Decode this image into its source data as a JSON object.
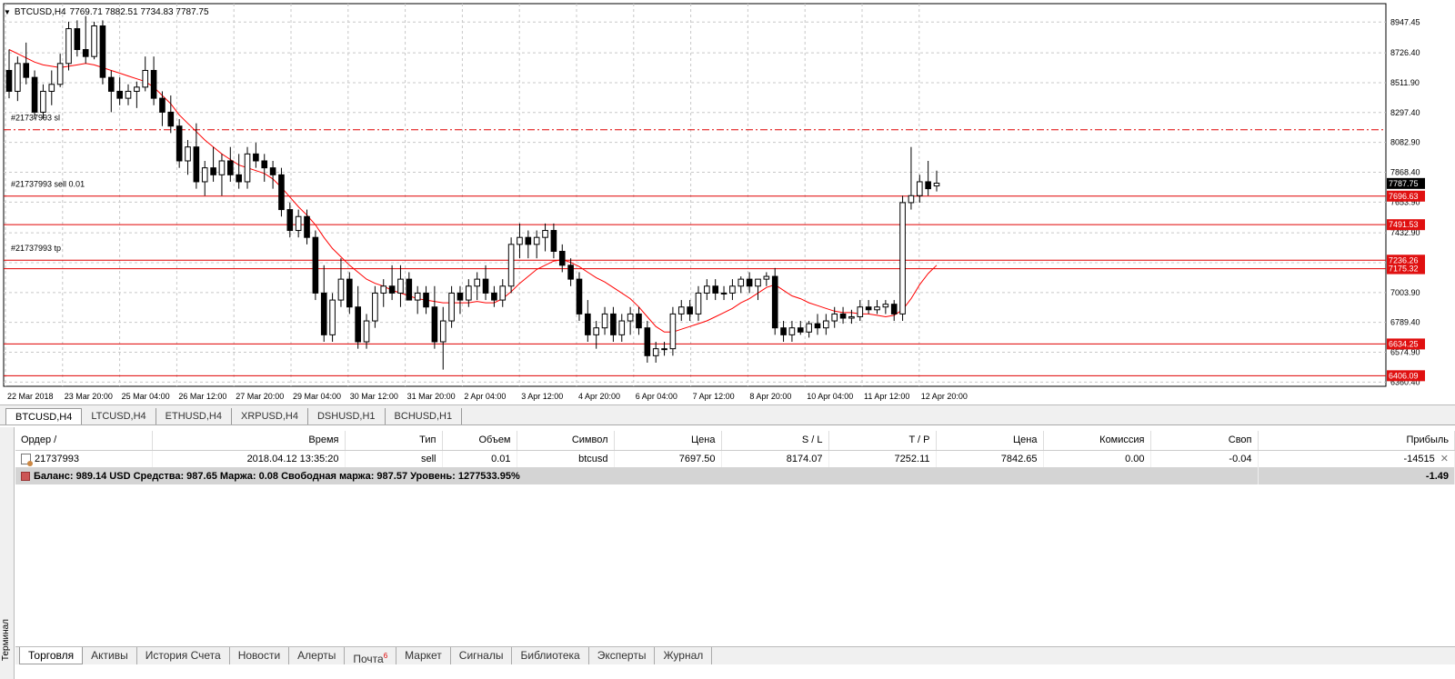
{
  "header": {
    "symbol": "BTCUSD,H4",
    "ohlc": "7769.71 7882.51 7734.83 7787.75"
  },
  "price_axis": {
    "labels": [
      "8947.45",
      "8726.40",
      "8511.90",
      "8297.40",
      "8082.90",
      "7868.40",
      "7653.90",
      "7432.90",
      "7218.40",
      "7003.90",
      "6789.40",
      "6574.90",
      "6360.40"
    ],
    "current_price": "7787.75",
    "levels": [
      {
        "price": "7696.63",
        "y_value": 7696.63
      },
      {
        "price": "7491.53",
        "y_value": 7491.53
      },
      {
        "price": "7236.26",
        "y_value": 7236.26
      },
      {
        "price": "7175.32",
        "y_value": 7175.32
      },
      {
        "price": "6634.25",
        "y_value": 6634.25
      },
      {
        "price": "6406.09",
        "y_value": 6406.09
      }
    ]
  },
  "order_labels": {
    "sl": "#21737993 sl",
    "sell": "#21737993 sell 0.01",
    "tp": "#21737993 tp"
  },
  "time_axis": [
    "22 Mar 2018",
    "23 Mar 20:00",
    "25 Mar 04:00",
    "26 Mar 12:00",
    "27 Mar 20:00",
    "29 Mar 04:00",
    "30 Mar 12:00",
    "31 Mar 20:00",
    "2 Apr 04:00",
    "3 Apr 12:00",
    "4 Apr 20:00",
    "6 Apr 04:00",
    "7 Apr 12:00",
    "8 Apr 20:00",
    "10 Apr 04:00",
    "11 Apr 12:00",
    "12 Apr 20:00"
  ],
  "chart_tabs": [
    "BTCUSD,H4",
    "LTCUSD,H4",
    "ETHUSD,H4",
    "XRPUSD,H4",
    "DSHUSD,H1",
    "BCHUSD,H1"
  ],
  "terminal": {
    "side_label": "Терминал",
    "columns": [
      "Ордер /",
      "Время",
      "Тип",
      "Объем",
      "Символ",
      "Цена",
      "S / L",
      "T / P",
      "Цена",
      "Комиссия",
      "Своп",
      "Прибыль"
    ],
    "order_row": {
      "order": "21737993",
      "time": "2018.04.12 13:35:20",
      "type": "sell",
      "volume": "0.01",
      "symbol": "btcusd",
      "open_price": "7697.50",
      "sl": "8174.07",
      "tp": "7252.11",
      "price": "7842.65",
      "commission": "0.00",
      "swap": "-0.04",
      "profit": "-14515"
    },
    "summary": {
      "text": "Баланс: 989.14 USD  Средства: 987.65  Маржа: 0.08  Свободная маржа: 987.57  Уровень: 1277533.95%",
      "profit": "-1.49"
    },
    "tabs": [
      "Торговля",
      "Активы",
      "История Счета",
      "Новости",
      "Алерты",
      "Почта",
      "Маркет",
      "Сигналы",
      "Библиотека",
      "Эксперты",
      "Журнал"
    ],
    "mail_badge": "6"
  },
  "chart_data": {
    "type": "candlestick",
    "ylim": [
      6330,
      9080
    ],
    "sl_value": 8174.07,
    "ma_color": "#ff0000",
    "level_color": "#e00000",
    "candles": [
      [
        8600,
        8750,
        8400,
        8450
      ],
      [
        8450,
        8700,
        8380,
        8650
      ],
      [
        8650,
        8800,
        8500,
        8550
      ],
      [
        8550,
        8600,
        8250,
        8300
      ],
      [
        8300,
        8500,
        8250,
        8450
      ],
      [
        8450,
        8600,
        8350,
        8500
      ],
      [
        8500,
        8720,
        8480,
        8650
      ],
      [
        8650,
        8950,
        8600,
        8900
      ],
      [
        8900,
        8960,
        8700,
        8750
      ],
      [
        8750,
        8990,
        8650,
        8700
      ],
      [
        8700,
        8950,
        8680,
        8920
      ],
      [
        8920,
        8960,
        8500,
        8550
      ],
      [
        8550,
        8600,
        8300,
        8450
      ],
      [
        8450,
        8550,
        8350,
        8400
      ],
      [
        8400,
        8500,
        8350,
        8450
      ],
      [
        8450,
        8520,
        8330,
        8480
      ],
      [
        8480,
        8700,
        8450,
        8600
      ],
      [
        8600,
        8700,
        8350,
        8400
      ],
      [
        8400,
        8450,
        8200,
        8300
      ],
      [
        8300,
        8420,
        8150,
        8200
      ],
      [
        8200,
        8250,
        7900,
        7950
      ],
      [
        7950,
        8100,
        7850,
        8050
      ],
      [
        8050,
        8220,
        7750,
        7800
      ],
      [
        7800,
        7950,
        7700,
        7900
      ],
      [
        7900,
        8050,
        7800,
        7850
      ],
      [
        7850,
        8000,
        7700,
        7950
      ],
      [
        7950,
        8050,
        7800,
        7850
      ],
      [
        7850,
        8000,
        7750,
        7800
      ],
      [
        7800,
        8050,
        7750,
        8000
      ],
      [
        8000,
        8080,
        7900,
        7950
      ],
      [
        7950,
        8000,
        7800,
        7900
      ],
      [
        7900,
        7950,
        7750,
        7850
      ],
      [
        7850,
        7900,
        7550,
        7600
      ],
      [
        7600,
        7650,
        7400,
        7450
      ],
      [
        7450,
        7600,
        7400,
        7550
      ],
      [
        7550,
        7600,
        7350,
        7400
      ],
      [
        7400,
        7450,
        6950,
        7000
      ],
      [
        7000,
        7200,
        6650,
        6700
      ],
      [
        6700,
        7000,
        6650,
        6950
      ],
      [
        6950,
        7250,
        6900,
        7100
      ],
      [
        7100,
        7150,
        6850,
        6900
      ],
      [
        6900,
        7050,
        6600,
        6650
      ],
      [
        6650,
        6850,
        6600,
        6800
      ],
      [
        6800,
        7050,
        6750,
        7000
      ],
      [
        7000,
        7100,
        6900,
        7050
      ],
      [
        7050,
        7200,
        6950,
        7000
      ],
      [
        7000,
        7200,
        6900,
        7100
      ],
      [
        7100,
        7150,
        6950,
        6950
      ],
      [
        6950,
        7050,
        6850,
        7000
      ],
      [
        7000,
        7050,
        6850,
        6900
      ],
      [
        6900,
        7050,
        6600,
        6650
      ],
      [
        6650,
        6900,
        6450,
        6800
      ],
      [
        6800,
        7050,
        6750,
        7000
      ],
      [
        7000,
        7050,
        6850,
        6950
      ],
      [
        6950,
        7100,
        6900,
        7050
      ],
      [
        7050,
        7150,
        6950,
        7100
      ],
      [
        7100,
        7200,
        6950,
        7000
      ],
      [
        7000,
        7050,
        6900,
        6950
      ],
      [
        6950,
        7100,
        6900,
        7050
      ],
      [
        7050,
        7400,
        7000,
        7350
      ],
      [
        7350,
        7500,
        7250,
        7400
      ],
      [
        7400,
        7450,
        7250,
        7350
      ],
      [
        7350,
        7450,
        7250,
        7400
      ],
      [
        7400,
        7500,
        7300,
        7450
      ],
      [
        7450,
        7500,
        7250,
        7300
      ],
      [
        7300,
        7350,
        7150,
        7200
      ],
      [
        7200,
        7250,
        7050,
        7100
      ],
      [
        7100,
        7150,
        6800,
        6850
      ],
      [
        6850,
        6950,
        6650,
        6700
      ],
      [
        6700,
        6800,
        6600,
        6750
      ],
      [
        6750,
        6900,
        6700,
        6850
      ],
      [
        6850,
        6900,
        6650,
        6700
      ],
      [
        6700,
        6850,
        6650,
        6800
      ],
      [
        6800,
        6900,
        6700,
        6850
      ],
      [
        6850,
        6900,
        6700,
        6750
      ],
      [
        6750,
        6800,
        6500,
        6550
      ],
      [
        6550,
        6650,
        6500,
        6600
      ],
      [
        6600,
        6650,
        6550,
        6600
      ],
      [
        6600,
        6900,
        6550,
        6850
      ],
      [
        6850,
        6950,
        6800,
        6900
      ],
      [
        6900,
        6950,
        6800,
        6850
      ],
      [
        6850,
        7050,
        6800,
        7000
      ],
      [
        7000,
        7100,
        6950,
        7050
      ],
      [
        7050,
        7100,
        6950,
        7000
      ],
      [
        7000,
        7050,
        6950,
        7000
      ],
      [
        7000,
        7100,
        6950,
        7050
      ],
      [
        7050,
        7120,
        7000,
        7100
      ],
      [
        7100,
        7150,
        7000,
        7050
      ],
      [
        7050,
        7100,
        6950,
        7100
      ],
      [
        7100,
        7150,
        7050,
        7120
      ],
      [
        7120,
        7180,
        6700,
        6750
      ],
      [
        6750,
        6800,
        6650,
        6700
      ],
      [
        6700,
        6800,
        6650,
        6750
      ],
      [
        6750,
        6800,
        6700,
        6720
      ],
      [
        6720,
        6800,
        6680,
        6780
      ],
      [
        6780,
        6850,
        6700,
        6750
      ],
      [
        6750,
        6850,
        6700,
        6800
      ],
      [
        6800,
        6900,
        6750,
        6850
      ],
      [
        6850,
        6900,
        6780,
        6820
      ],
      [
        6820,
        6880,
        6780,
        6830
      ],
      [
        6830,
        6950,
        6800,
        6900
      ],
      [
        6900,
        6950,
        6850,
        6880
      ],
      [
        6880,
        6950,
        6850,
        6900
      ],
      [
        6900,
        6950,
        6850,
        6920
      ],
      [
        6920,
        6950,
        6800,
        6850
      ],
      [
        6850,
        7700,
        6800,
        7650
      ],
      [
        7650,
        8050,
        7600,
        7700
      ],
      [
        7700,
        7850,
        7650,
        7800
      ],
      [
        7800,
        7950,
        7700,
        7750
      ],
      [
        7770,
        7880,
        7730,
        7790
      ]
    ],
    "ma": [
      8750,
      8720,
      8690,
      8660,
      8640,
      8630,
      8620,
      8630,
      8640,
      8650,
      8640,
      8620,
      8600,
      8580,
      8560,
      8540,
      8520,
      8480,
      8420,
      8360,
      8280,
      8220,
      8160,
      8100,
      8050,
      8000,
      7960,
      7920,
      7900,
      7880,
      7860,
      7820,
      7760,
      7690,
      7620,
      7560,
      7490,
      7400,
      7320,
      7260,
      7200,
      7150,
      7100,
      7070,
      7050,
      7020,
      7000,
      6980,
      6960,
      6950,
      6940,
      6930,
      6930,
      6930,
      6930,
      6940,
      6930,
      6930,
      6960,
      7010,
      7070,
      7120,
      7170,
      7200,
      7230,
      7240,
      7220,
      7190,
      7150,
      7110,
      7080,
      7040,
      7000,
      6960,
      6900,
      6830,
      6760,
      6720,
      6720,
      6740,
      6760,
      6780,
      6800,
      6830,
      6860,
      6890,
      6930,
      6960,
      7000,
      7040,
      7060,
      7020,
      6980,
      6960,
      6930,
      6910,
      6890,
      6870,
      6860,
      6860,
      6850,
      6850,
      6840,
      6830,
      6840,
      6880,
      6960,
      7060,
      7140,
      7200
    ]
  }
}
